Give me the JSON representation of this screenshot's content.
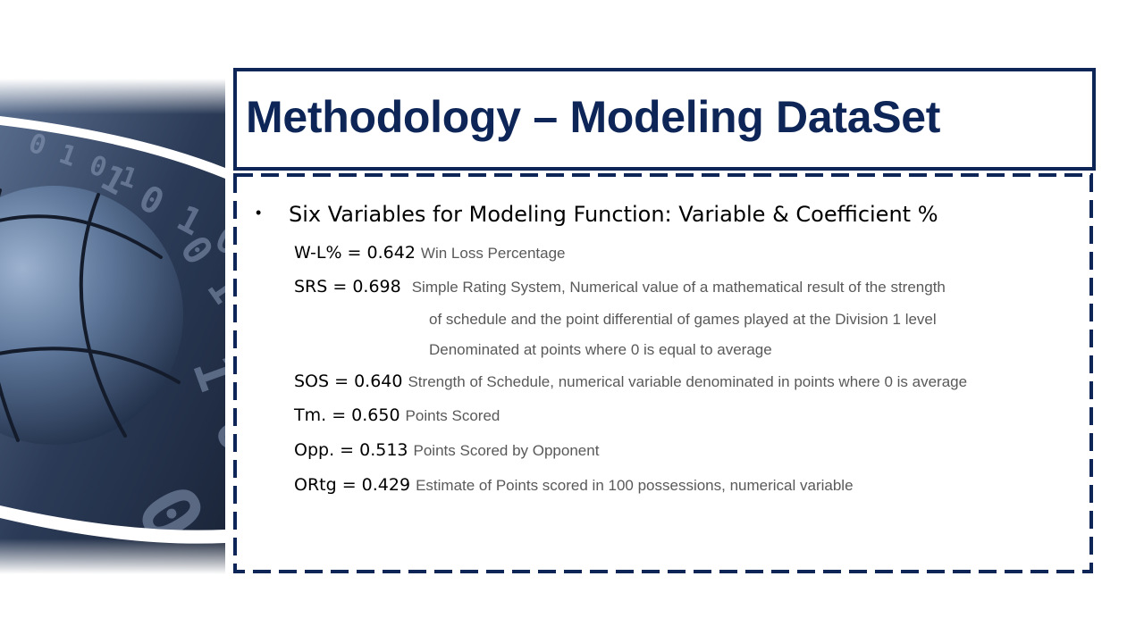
{
  "slide": {
    "title": "Methodology – Modeling DataSet",
    "heading": "Six Variables for Modeling Function: Variable & Coefficient %",
    "bullet_glyph": "•",
    "art_digits": [
      "0 1 0 1",
      "1 0 1 0 1",
      "0 1 1 0",
      "1 0",
      "0"
    ],
    "variables": [
      {
        "label": "W-L% = 0.642",
        "description": [
          "Win Loss Percentage"
        ]
      },
      {
        "label": "SRS = 0.698",
        "description": [
          "Simple Rating System, Numerical value of a mathematical result of the strength",
          "of schedule and the point differential of games played at the Division 1 level",
          "Denominated at points where 0 is equal to average"
        ]
      },
      {
        "label": "SOS = 0.640",
        "description": [
          "Strength of Schedule, numerical variable denominated in points where 0 is average"
        ]
      },
      {
        "label": "Tm. = 0.650",
        "description": [
          "Points Scored"
        ]
      },
      {
        "label": "Opp. = 0.513",
        "description": [
          "Points Scored by Opponent"
        ]
      },
      {
        "label": "ORtg = 0.429",
        "description": [
          "Estimate of Points scored in 100 possessions, numerical variable"
        ]
      }
    ]
  },
  "colors": {
    "accent": "#0d2657",
    "description_text": "#595959"
  }
}
